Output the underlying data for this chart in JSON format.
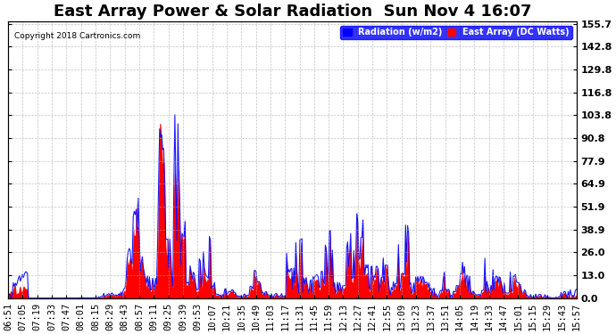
{
  "title": "East Array Power & Solar Radiation  Sun Nov 4 16:07",
  "copyright": "Copyright 2018 Cartronics.com",
  "legend_radiation": "Radiation (w/m2)",
  "legend_east_array": "East Array (DC Watts)",
  "ylabel_right_ticks": [
    0.0,
    13.0,
    26.0,
    38.9,
    51.9,
    64.9,
    77.9,
    90.8,
    103.8,
    116.8,
    129.8,
    142.8,
    155.7
  ],
  "ymax": 155.7,
  "ymin": 0.0,
  "radiation_color": "#0000FF",
  "east_array_color": "#FF0000",
  "background_color": "#FFFFFF",
  "grid_color": "#AAAAAA",
  "title_fontsize": 13,
  "tick_fontsize": 7.5,
  "xtick_labels": [
    "06:51",
    "07:05",
    "07:19",
    "07:33",
    "07:47",
    "08:01",
    "08:15",
    "08:29",
    "08:43",
    "08:57",
    "09:11",
    "09:25",
    "09:39",
    "09:53",
    "10:07",
    "10:21",
    "10:35",
    "10:49",
    "11:03",
    "11:17",
    "11:31",
    "11:45",
    "11:59",
    "12:13",
    "12:27",
    "12:41",
    "12:55",
    "13:09",
    "13:23",
    "13:37",
    "13:51",
    "14:05",
    "14:19",
    "14:33",
    "14:47",
    "15:01",
    "15:15",
    "15:29",
    "15:43",
    "15:57"
  ]
}
